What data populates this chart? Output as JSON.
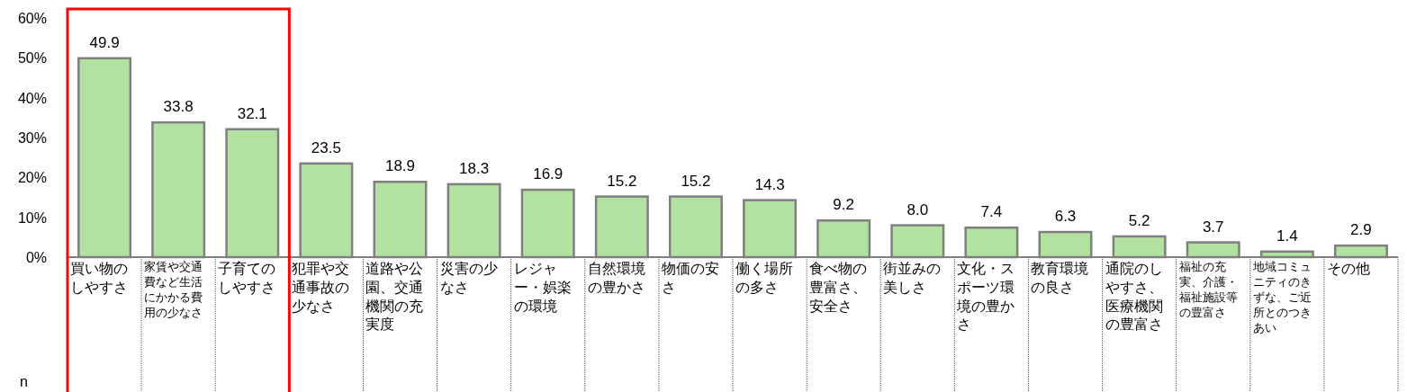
{
  "chart_data": {
    "type": "bar",
    "categories": [
      "買い物のしやすさ",
      "家賃や交通費など生活にかかる費用の少なさ",
      "子育てのしやすさ",
      "犯罪や交通事故の少なさ",
      "道路や公園、交通機関の充実度",
      "災害の少なさ",
      "レジャー・娯楽の環境",
      "自然環境の豊かさ",
      "物価の安さ",
      "働く場所の多さ",
      "食べ物の豊富さ、安全さ",
      "街並みの美しさ",
      "文化・スポーツ環境の豊かさ",
      "教育環境の良さ",
      "通院のしやすさ、医療機関の豊富さ",
      "福祉の充実、介護・福祉施設等の豊富さ",
      "地域コミュニティのきずな、ご近所とのつきあい",
      "その他"
    ],
    "values": [
      49.9,
      33.8,
      32.1,
      23.5,
      18.9,
      18.3,
      16.9,
      15.2,
      15.2,
      14.3,
      9.2,
      8.0,
      7.4,
      6.3,
      5.2,
      3.7,
      1.4,
      2.9
    ],
    "value_labels": [
      "49.9",
      "33.8",
      "32.1",
      "23.5",
      "18.9",
      "18.3",
      "16.9",
      "15.2",
      "15.2",
      "14.3",
      "9.2",
      "8.0",
      "7.4",
      "6.3",
      "5.2",
      "3.7",
      "1.4",
      "2.9"
    ],
    "color": "#b3e1a1",
    "ylim": [
      0,
      60
    ],
    "yticks": [
      {
        "value": 0,
        "label": "0%"
      },
      {
        "value": 10,
        "label": "10%"
      },
      {
        "value": 20,
        "label": "20%"
      },
      {
        "value": 30,
        "label": "30%"
      },
      {
        "value": 40,
        "label": "40%"
      },
      {
        "value": 50,
        "label": "50%"
      },
      {
        "value": 60,
        "label": "60%"
      }
    ],
    "annotations": [
      "n"
    ]
  }
}
